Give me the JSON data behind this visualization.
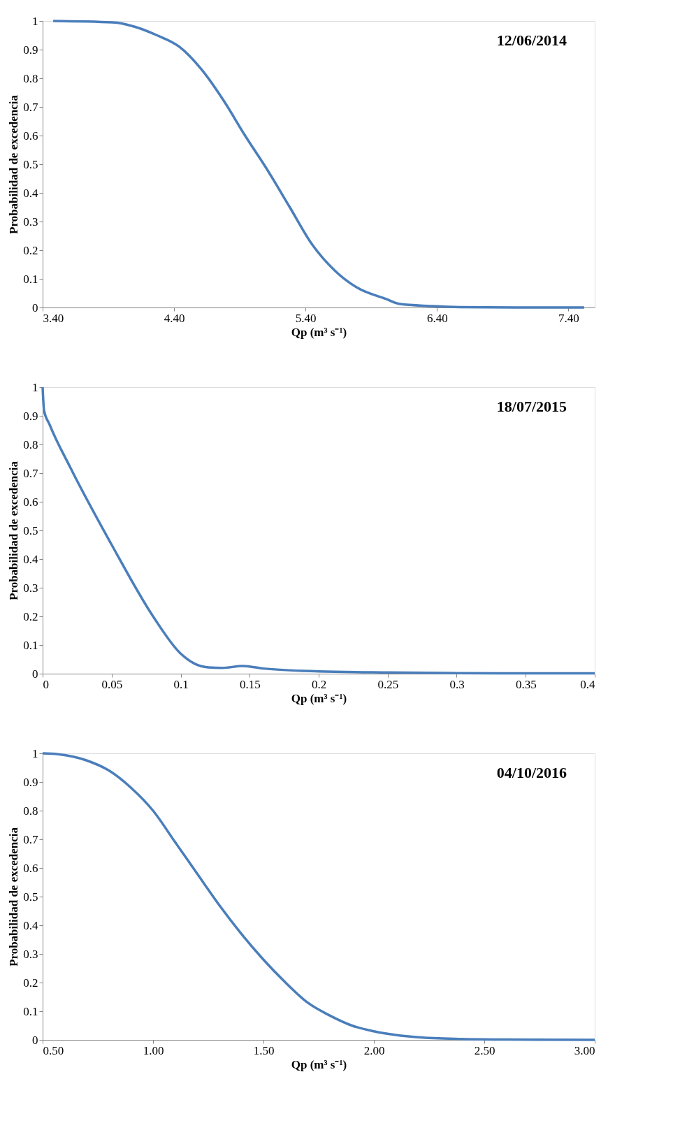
{
  "chart_data": [
    {
      "type": "line",
      "xlabel": "Qp (m³ s⁻¹)",
      "ylabel": "Probabilidad de excedencia",
      "annotations": [
        "12/06/2014"
      ],
      "marker": "none",
      "line_style": "solid",
      "xlim": [
        3.4,
        7.6
      ],
      "xticks": [
        {
          "value": 3.4,
          "label": "3.40"
        },
        {
          "value": 4.4,
          "label": "4.40"
        },
        {
          "value": 5.4,
          "label": "5.40"
        },
        {
          "value": 6.4,
          "label": "6.40"
        },
        {
          "value": 7.4,
          "label": "7.40"
        }
      ],
      "ylim": [
        0,
        1
      ],
      "yticks": [
        0,
        0.1,
        0.2,
        0.3,
        0.4,
        0.5,
        0.6,
        0.7,
        0.8,
        0.9,
        1
      ],
      "series": [
        {
          "color": "#4a7ebb",
          "x": [
            3.48,
            3.93,
            4.1,
            4.27,
            4.44,
            4.61,
            4.78,
            4.94,
            5.11,
            5.28,
            5.45,
            5.62,
            5.79,
            6.01,
            6.12,
            6.35,
            6.57,
            7.0,
            7.52
          ],
          "values": [
            1,
            0.995,
            0.98,
            0.95,
            0.91,
            0.83,
            0.72,
            0.6,
            0.48,
            0.35,
            0.22,
            0.13,
            0.07,
            0.03,
            0.012,
            0.005,
            0.001,
            0,
            0
          ]
        }
      ]
    },
    {
      "type": "line",
      "xlabel": "Qp (m³ s⁻¹)",
      "ylabel": "Probabilidad de excedencia",
      "annotations": [
        "18/07/2015"
      ],
      "marker": "none",
      "line_style": "solid",
      "xlim": [
        0,
        0.4
      ],
      "xticks": [
        0,
        0.05,
        0.1,
        0.15,
        0.2,
        0.25,
        0.3,
        0.35,
        0.4
      ],
      "ylim": [
        0,
        1
      ],
      "yticks": [
        0,
        0.1,
        0.2,
        0.3,
        0.4,
        0.5,
        0.6,
        0.7,
        0.8,
        0.9,
        1
      ],
      "series": [
        {
          "color": "#4a7ebb",
          "x": [
            0,
            0.001,
            0.005,
            0.02,
            0.05,
            0.08,
            0.1,
            0.11,
            0.12,
            0.13,
            0.145,
            0.16,
            0.2,
            0.25,
            0.3,
            0.4
          ],
          "values": [
            1,
            0.92,
            0.87,
            0.72,
            0.45,
            0.2,
            0.07,
            0.035,
            0.022,
            0.02,
            0.027,
            0.018,
            0.008,
            0.004,
            0.002,
            0.001
          ]
        }
      ]
    },
    {
      "type": "line",
      "xlabel": "Qp (m³ s⁻¹)",
      "ylabel": "Probabilidad de excedencia",
      "annotations": [
        "04/10/2016"
      ],
      "marker": "none",
      "line_style": "solid",
      "xlim": [
        0.5,
        3.0
      ],
      "xticks": [
        {
          "value": 0.5,
          "label": "0.50"
        },
        {
          "value": 1.0,
          "label": "1.00"
        },
        {
          "value": 1.5,
          "label": "1.50"
        },
        {
          "value": 2.0,
          "label": "2.00"
        },
        {
          "value": 2.5,
          "label": "2.50"
        },
        {
          "value": 3.0,
          "label": "3.00"
        }
      ],
      "ylim": [
        0,
        1
      ],
      "yticks": [
        0,
        0.1,
        0.2,
        0.3,
        0.4,
        0.5,
        0.6,
        0.7,
        0.8,
        0.9,
        1
      ],
      "series": [
        {
          "color": "#4a7ebb",
          "x": [
            0.5,
            0.57,
            0.7,
            0.8,
            0.9,
            1.0,
            1.1,
            1.2,
            1.3,
            1.4,
            1.5,
            1.6,
            1.7,
            1.8,
            1.9,
            2.0,
            2.1,
            2.2,
            2.4,
            2.6,
            3.0
          ],
          "values": [
            1,
            0.997,
            0.975,
            0.94,
            0.88,
            0.8,
            0.69,
            0.58,
            0.47,
            0.37,
            0.28,
            0.2,
            0.13,
            0.085,
            0.05,
            0.03,
            0.017,
            0.009,
            0.003,
            0.001,
            0
          ]
        }
      ]
    }
  ]
}
